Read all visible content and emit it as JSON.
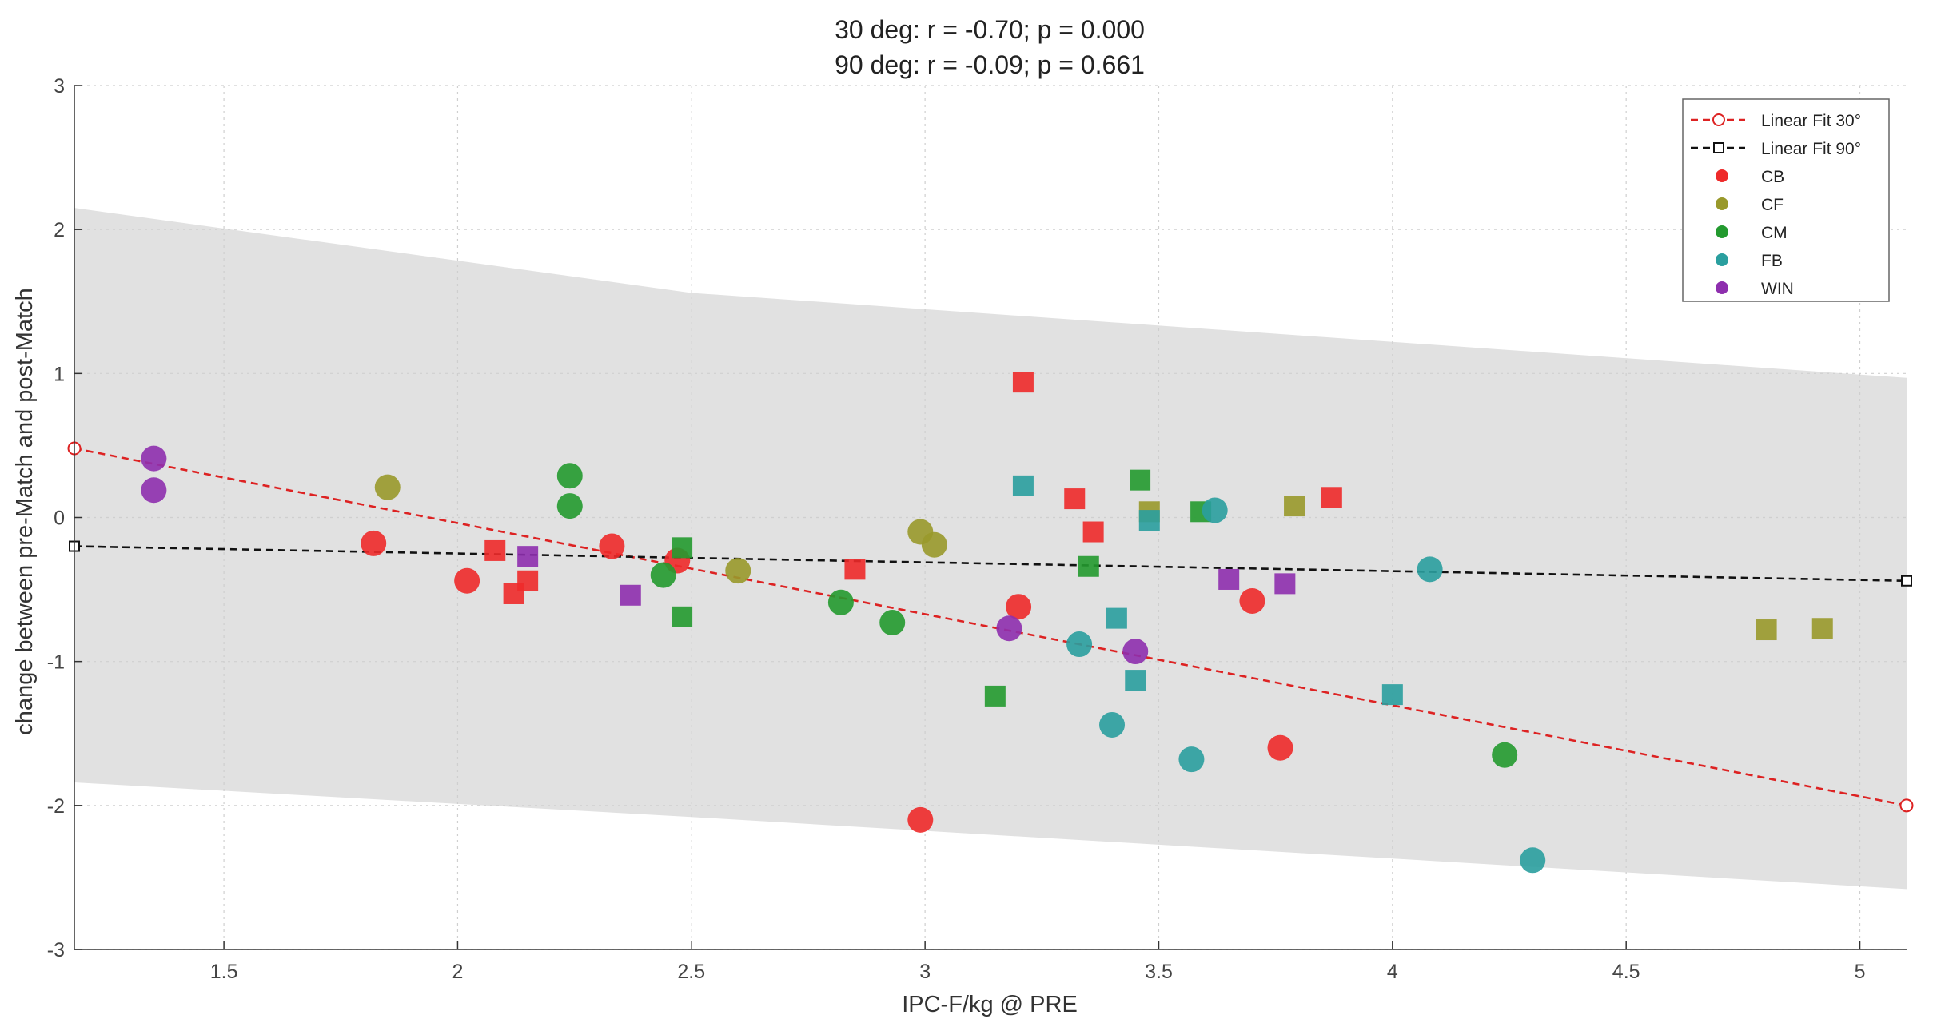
{
  "chart_data": {
    "type": "scatter",
    "title": [
      "30 deg: r = -0.70; p = 0.000",
      "90 deg: r = -0.09; p = 0.661"
    ],
    "xlabel": "IPC-F/kg @ PRE",
    "ylabel": "change between pre-Match and post-Match",
    "xlim": [
      1.18,
      5.1
    ],
    "ylim": [
      -3,
      3
    ],
    "xticks": [
      1.5,
      2,
      2.5,
      3,
      3.5,
      4,
      4.5,
      5
    ],
    "xtick_labels": [
      "1.5",
      "2",
      "2.5",
      "3",
      "3.5",
      "4",
      "4.5",
      "5"
    ],
    "yticks": [
      -3,
      -2,
      -1,
      0,
      1,
      2,
      3
    ],
    "ytick_labels": [
      "-3",
      "-2",
      "-1",
      "0",
      "1",
      "2",
      "3"
    ],
    "grid": true,
    "legend_position": "top-right",
    "legend": [
      "Linear Fit 30°",
      "Linear Fit 90°",
      "CB",
      "CF",
      "CM",
      "FB",
      "WIN"
    ],
    "colors": {
      "CB": "#ee2a2a",
      "CF": "#99992b",
      "CM": "#239a2f",
      "FB": "#2a9f9f",
      "WIN": "#8e2fae",
      "fit30": "#dd2222",
      "fit90": "#111111",
      "band": "#e1e1e1"
    },
    "fits": [
      {
        "name": "Linear Fit 30°",
        "x": [
          1.18,
          5.1
        ],
        "y": [
          0.48,
          -2.0
        ],
        "style": "dashed",
        "marker": "circle"
      },
      {
        "name": "Linear Fit 90°",
        "x": [
          1.18,
          5.1
        ],
        "y": [
          -0.2,
          -0.44
        ],
        "style": "dashed",
        "marker": "square"
      }
    ],
    "confidence_band": {
      "x": [
        1.18,
        2.5,
        5.1
      ],
      "upper": [
        2.15,
        1.56,
        0.97
      ],
      "lower": [
        -1.84,
        -2.08,
        -2.58
      ]
    },
    "series": [
      {
        "name": "CB",
        "marker": "circle",
        "points": [
          [
            1.82,
            -0.18
          ],
          [
            2.02,
            -0.44
          ],
          [
            2.33,
            -0.2
          ],
          [
            2.47,
            -0.3
          ],
          [
            2.99,
            -2.1
          ],
          [
            3.2,
            -0.62
          ],
          [
            3.7,
            -0.58
          ],
          [
            3.76,
            -1.6
          ]
        ]
      },
      {
        "name": "CB",
        "marker": "square",
        "points": [
          [
            2.08,
            -0.23
          ],
          [
            2.12,
            -0.53
          ],
          [
            2.15,
            -0.44
          ],
          [
            2.85,
            -0.36
          ],
          [
            3.21,
            0.94
          ],
          [
            3.32,
            0.13
          ],
          [
            3.36,
            -0.1
          ],
          [
            3.87,
            0.14
          ]
        ]
      },
      {
        "name": "CF",
        "marker": "circle",
        "points": [
          [
            1.85,
            0.21
          ],
          [
            2.6,
            -0.37
          ],
          [
            2.99,
            -0.1
          ],
          [
            3.02,
            -0.19
          ]
        ]
      },
      {
        "name": "CF",
        "marker": "square",
        "points": [
          [
            3.48,
            0.04
          ],
          [
            3.79,
            0.08
          ],
          [
            4.8,
            -0.78
          ],
          [
            4.92,
            -0.77
          ]
        ]
      },
      {
        "name": "CM",
        "marker": "circle",
        "points": [
          [
            2.24,
            0.29
          ],
          [
            2.24,
            0.08
          ],
          [
            2.44,
            -0.4
          ],
          [
            2.82,
            -0.59
          ],
          [
            2.93,
            -0.73
          ],
          [
            4.24,
            -1.65
          ]
        ]
      },
      {
        "name": "CM",
        "marker": "square",
        "points": [
          [
            2.48,
            -0.21
          ],
          [
            2.48,
            -0.69
          ],
          [
            3.15,
            -1.24
          ],
          [
            3.35,
            -0.34
          ],
          [
            3.46,
            0.26
          ],
          [
            3.59,
            0.04
          ]
        ]
      },
      {
        "name": "FB",
        "marker": "circle",
        "points": [
          [
            3.33,
            -0.88
          ],
          [
            3.4,
            -1.44
          ],
          [
            3.57,
            -1.68
          ],
          [
            3.62,
            0.05
          ],
          [
            4.08,
            -0.36
          ],
          [
            4.3,
            -2.38
          ]
        ]
      },
      {
        "name": "FB",
        "marker": "square",
        "points": [
          [
            3.21,
            0.22
          ],
          [
            3.41,
            -0.7
          ],
          [
            3.45,
            -1.13
          ],
          [
            3.48,
            -0.02
          ],
          [
            4.0,
            -1.23
          ]
        ]
      },
      {
        "name": "WIN",
        "marker": "circle",
        "points": [
          [
            1.35,
            0.41
          ],
          [
            1.35,
            0.19
          ],
          [
            3.18,
            -0.77
          ],
          [
            3.45,
            -0.93
          ]
        ]
      },
      {
        "name": "WIN",
        "marker": "square",
        "points": [
          [
            2.15,
            -0.27
          ],
          [
            2.37,
            -0.54
          ],
          [
            3.65,
            -0.43
          ],
          [
            3.77,
            -0.46
          ]
        ]
      }
    ]
  }
}
